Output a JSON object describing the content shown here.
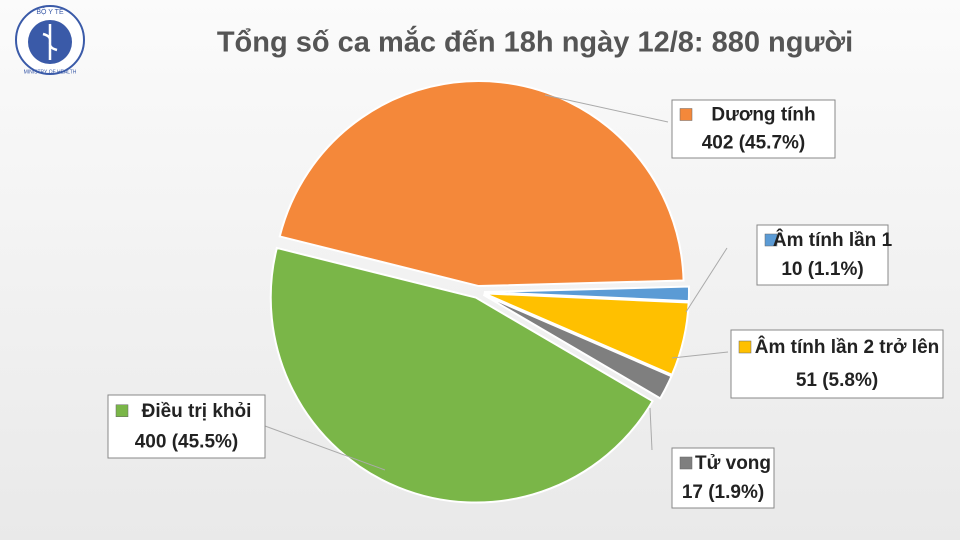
{
  "logo": {
    "top": "BỘ Y TẾ",
    "bottom": "MINISTRY OF HEALTH"
  },
  "chart_data": {
    "type": "pie",
    "title": "Tổng số ca mắc đến 18h ngày 12/8: 880 người",
    "categories": [
      "Dương tính",
      "Âm tính lần 1",
      "Âm tính lần 2 trở lên",
      "Tử vong",
      "Điều trị khỏi"
    ],
    "values": [
      402,
      10,
      51,
      17,
      400
    ],
    "value_labels": [
      "402 (45.7%)",
      "10 (1.1%)",
      "51 (5.8%)",
      "17 (1.9%)",
      "400 (45.5%)"
    ],
    "colors": [
      "#f4883a",
      "#5b9bd5",
      "#ffc000",
      "#7f7f7f",
      "#7ab648"
    ]
  }
}
